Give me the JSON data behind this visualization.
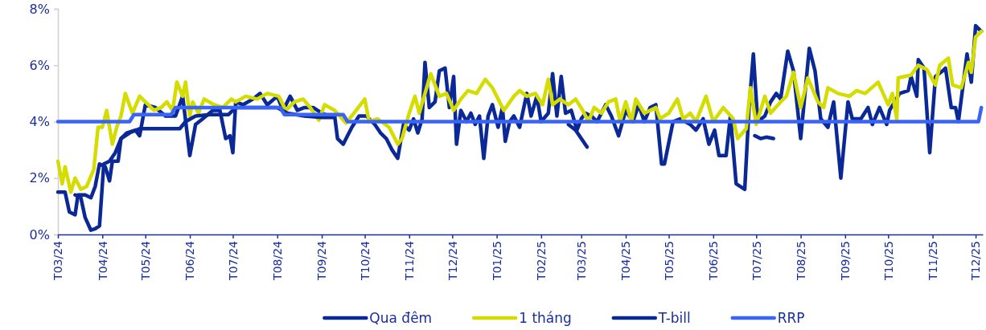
{
  "chart_data": {
    "type": "line",
    "ylim": [
      0,
      8
    ],
    "yticks": [
      {
        "value": 0,
        "label": "0%"
      },
      {
        "value": 2,
        "label": "2%"
      },
      {
        "value": 4,
        "label": "4%"
      },
      {
        "value": 6,
        "label": "6%"
      },
      {
        "value": 8,
        "label": "8%"
      }
    ],
    "xlim": [
      "2024-03-01",
      "2025-12-06"
    ],
    "xticks": [
      {
        "value": "2024-03-01",
        "label": "T03/24"
      },
      {
        "value": "2024-04-01",
        "label": "T04/24"
      },
      {
        "value": "2024-05-01",
        "label": "T05/24"
      },
      {
        "value": "2024-06-01",
        "label": "T06/24"
      },
      {
        "value": "2024-07-01",
        "label": "T07/24"
      },
      {
        "value": "2024-08-01",
        "label": "T08/24"
      },
      {
        "value": "2024-09-01",
        "label": "T09/24"
      },
      {
        "value": "2024-10-01",
        "label": "T10/24"
      },
      {
        "value": "2024-11-01",
        "label": "T11/24"
      },
      {
        "value": "2024-12-01",
        "label": "T12/24"
      },
      {
        "value": "2025-01-01",
        "label": "T01/25"
      },
      {
        "value": "2025-02-01",
        "label": "T02/25"
      },
      {
        "value": "2025-03-01",
        "label": "T03/25"
      },
      {
        "value": "2025-04-01",
        "label": "T04/25"
      },
      {
        "value": "2025-05-01",
        "label": "T05/25"
      },
      {
        "value": "2025-06-01",
        "label": "T06/25"
      },
      {
        "value": "2025-07-01",
        "label": "T07/25"
      },
      {
        "value": "2025-08-01",
        "label": "T08/25"
      },
      {
        "value": "2025-09-01",
        "label": "T09/25"
      },
      {
        "value": "2025-10-01",
        "label": "T10/25"
      },
      {
        "value": "2025-11-01",
        "label": "T11/25"
      },
      {
        "value": "2025-12-01",
        "label": "T12/25"
      }
    ],
    "grid": false,
    "legend": "bottom",
    "line_style": "solid",
    "marker": "none",
    "series": [
      {
        "name": "Qua đêm",
        "color": "#0a2896",
        "x": [
          "2024-03-01",
          "2024-03-06",
          "2024-03-09",
          "2024-03-13",
          "2024-03-15",
          "2024-03-20",
          "2024-03-24",
          "2024-03-27",
          "2024-03-30",
          "2024-04-03",
          "2024-04-06",
          "2024-04-08",
          "2024-04-12",
          "2024-04-14",
          "2024-04-18",
          "2024-04-24",
          "2024-04-27",
          "2024-05-01",
          "2024-05-08",
          "2024-05-15",
          "2024-05-22",
          "2024-05-27",
          "2024-06-01",
          "2024-06-05",
          "2024-06-10",
          "2024-06-17",
          "2024-06-22",
          "2024-06-26",
          "2024-06-29",
          "2024-07-01",
          "2024-07-03",
          "2024-07-08",
          "2024-07-15",
          "2024-07-20",
          "2024-07-25",
          "2024-08-01",
          "2024-08-05",
          "2024-08-10",
          "2024-08-15",
          "2024-08-20",
          "2024-08-26",
          "2024-09-01",
          "2024-09-06",
          "2024-09-10",
          "2024-09-12",
          "2024-09-16",
          "2024-09-22",
          "2024-09-27",
          "2024-10-02",
          "2024-10-08",
          "2024-10-12",
          "2024-10-16",
          "2024-10-20",
          "2024-10-24",
          "2024-10-28",
          "2024-11-01",
          "2024-11-04",
          "2024-11-07",
          "2024-11-10",
          "2024-11-12",
          "2024-11-15",
          "2024-11-19",
          "2024-11-22",
          "2024-11-26",
          "2024-11-29",
          "2024-12-02",
          "2024-12-04",
          "2024-12-07",
          "2024-12-11",
          "2024-12-14",
          "2024-12-17",
          "2024-12-20",
          "2024-12-23",
          "2024-12-26",
          "2024-12-29",
          "2025-01-02",
          "2025-01-05",
          "2025-01-07",
          "2025-01-10",
          "2025-01-13",
          "2025-01-17",
          "2025-01-22",
          "2025-01-25",
          "2025-01-29",
          "2025-02-01",
          "2025-02-06",
          "2025-02-09",
          "2025-02-12",
          "2025-02-15",
          "2025-02-18",
          "2025-02-22",
          "2025-02-26",
          "2025-03-01",
          "2025-03-04",
          "2025-03-08",
          "2025-03-12",
          "2025-03-18",
          "2025-03-22",
          "2025-03-27",
          "2025-04-01",
          "2025-04-06",
          "2025-04-10",
          "2025-04-14",
          "2025-04-18",
          "2025-04-22",
          "2025-04-26",
          "2025-04-28",
          "2025-05-04",
          "2025-05-09",
          "2025-05-16",
          "2025-05-20",
          "2025-05-25",
          "2025-05-29",
          "2025-06-02",
          "2025-06-05",
          "2025-06-10",
          "2025-06-13",
          "2025-06-17",
          "2025-06-23",
          "2025-06-26",
          "2025-06-29",
          "2025-07-02",
          "2025-07-07",
          "2025-07-11",
          "2025-07-15",
          "2025-07-18",
          "2025-07-23",
          "2025-07-27",
          "2025-08-01",
          "2025-08-04",
          "2025-08-07",
          "2025-08-11",
          "2025-08-15",
          "2025-08-20",
          "2025-08-24",
          "2025-08-29",
          "2025-09-03",
          "2025-09-06",
          "2025-09-12",
          "2025-09-17",
          "2025-09-20",
          "2025-09-25",
          "2025-09-30",
          "2025-10-02",
          "2025-10-09",
          "2025-10-15",
          "2025-10-17",
          "2025-10-21",
          "2025-10-22",
          "2025-10-26",
          "2025-10-30",
          "2025-11-03",
          "2025-11-08",
          "2025-11-10",
          "2025-11-14",
          "2025-11-17",
          "2025-11-19",
          "2025-11-25",
          "2025-11-28",
          "2025-12-01",
          "2025-12-05"
        ],
        "values": [
          1.5,
          1.5,
          0.8,
          0.7,
          1.4,
          1.4,
          1.3,
          1.7,
          2.5,
          2.4,
          1.9,
          2.6,
          2.6,
          3.4,
          3.6,
          3.7,
          3.5,
          4.6,
          4.5,
          4.2,
          4.2,
          4.9,
          2.8,
          3.9,
          4.1,
          4.4,
          4.4,
          3.4,
          3.5,
          2.9,
          4.7,
          4.6,
          4.8,
          5.0,
          4.6,
          4.9,
          4.4,
          4.9,
          4.4,
          4.5,
          4.5,
          4.3,
          4.2,
          4.2,
          3.4,
          3.2,
          3.8,
          4.2,
          4.2,
          3.9,
          3.6,
          3.4,
          3.0,
          2.7,
          3.9,
          3.7,
          4.1,
          3.6,
          4.1,
          6.1,
          4.5,
          4.7,
          5.8,
          5.9,
          4.5,
          5.6,
          3.2,
          4.4,
          4.0,
          4.3,
          3.9,
          4.2,
          2.7,
          4.2,
          4.6,
          3.8,
          4.5,
          3.3,
          4.0,
          4.2,
          3.8,
          5.0,
          4.2,
          4.9,
          4.0,
          4.3,
          5.7,
          4.2,
          5.6,
          4.3,
          4.4,
          3.7,
          4.1,
          4.3,
          4.2,
          4.0,
          4.6,
          4.2,
          3.5,
          4.4,
          4.0,
          4.6,
          4.0,
          4.5,
          4.6,
          2.5,
          2.5,
          4.0,
          4.1,
          3.9,
          3.7,
          4.1,
          3.2,
          3.7,
          2.8,
          2.8,
          4.2,
          1.8,
          1.6,
          4.5,
          6.4,
          4.0,
          4.2,
          4.7,
          5.0,
          4.8,
          6.5,
          5.8,
          3.4,
          5.0,
          6.6,
          5.8,
          4.1,
          3.8,
          4.7,
          2.0,
          4.7,
          4.1,
          4.1,
          4.5,
          3.9,
          4.5,
          3.9,
          4.4,
          5.0,
          5.1,
          5.6,
          4.9,
          6.2,
          5.9,
          2.9,
          5.6,
          5.8,
          5.9,
          4.5,
          4.5,
          4.0,
          6.4,
          5.4,
          7.4,
          7.2
        ]
      },
      {
        "name": "1 tháng",
        "color": "#d4dc00",
        "x": [
          "2024-03-01",
          "2024-03-04",
          "2024-03-06",
          "2024-03-10",
          "2024-03-13",
          "2024-03-17",
          "2024-03-21",
          "2024-03-26",
          "2024-03-29",
          "2024-04-01",
          "2024-04-04",
          "2024-04-08",
          "2024-04-11",
          "2024-04-14",
          "2024-04-17",
          "2024-04-22",
          "2024-04-27",
          "2024-05-03",
          "2024-05-07",
          "2024-05-12",
          "2024-05-16",
          "2024-05-20",
          "2024-05-23",
          "2024-05-27",
          "2024-05-29",
          "2024-06-01",
          "2024-06-03",
          "2024-06-07",
          "2024-06-11",
          "2024-06-18",
          "2024-06-24",
          "2024-06-30",
          "2024-07-03",
          "2024-07-10",
          "2024-07-18",
          "2024-07-25",
          "2024-08-02",
          "2024-08-07",
          "2024-08-13",
          "2024-08-19",
          "2024-08-24",
          "2024-08-30",
          "2024-09-03",
          "2024-09-10",
          "2024-09-18",
          "2024-09-25",
          "2024-10-01",
          "2024-10-04",
          "2024-10-10",
          "2024-10-18",
          "2024-10-24",
          "2024-10-27",
          "2024-11-01",
          "2024-11-05",
          "2024-11-08",
          "2024-11-12",
          "2024-11-16",
          "2024-11-22",
          "2024-11-27",
          "2024-12-02",
          "2024-12-07",
          "2024-12-12",
          "2024-12-18",
          "2024-12-24",
          "2024-12-29",
          "2025-01-06",
          "2025-01-13",
          "2025-01-17",
          "2025-01-22",
          "2025-01-28",
          "2025-02-02",
          "2025-02-06",
          "2025-02-09",
          "2025-02-14",
          "2025-02-20",
          "2025-02-25",
          "2025-03-02",
          "2025-03-06",
          "2025-03-10",
          "2025-03-15",
          "2025-03-20",
          "2025-03-25",
          "2025-03-28",
          "2025-04-01",
          "2025-04-05",
          "2025-04-08",
          "2025-04-14",
          "2025-04-22",
          "2025-04-25",
          "2025-05-01",
          "2025-05-07",
          "2025-05-11",
          "2025-05-16",
          "2025-05-20",
          "2025-05-27",
          "2025-06-01",
          "2025-06-08",
          "2025-06-15",
          "2025-06-18",
          "2025-06-24",
          "2025-06-27",
          "2025-07-01",
          "2025-07-07",
          "2025-07-11",
          "2025-07-18",
          "2025-07-22",
          "2025-07-27",
          "2025-08-01",
          "2025-08-06",
          "2025-08-13",
          "2025-08-17",
          "2025-08-20",
          "2025-08-27",
          "2025-09-04",
          "2025-09-09",
          "2025-09-15",
          "2025-09-24",
          "2025-10-01",
          "2025-10-04",
          "2025-10-07",
          "2025-10-08",
          "2025-10-17",
          "2025-10-22",
          "2025-10-28",
          "2025-11-03",
          "2025-11-06",
          "2025-11-12",
          "2025-11-15",
          "2025-11-21",
          "2025-11-26",
          "2025-11-28",
          "2025-12-01",
          "2025-12-05"
        ],
        "values": [
          2.6,
          1.8,
          2.4,
          1.5,
          2.0,
          1.6,
          1.7,
          2.3,
          3.8,
          3.8,
          4.4,
          3.2,
          3.8,
          4.2,
          5.0,
          4.3,
          4.9,
          4.6,
          4.4,
          4.5,
          4.7,
          4.4,
          5.4,
          4.9,
          5.4,
          4.2,
          4.7,
          4.3,
          4.8,
          4.6,
          4.5,
          4.8,
          4.7,
          4.9,
          4.8,
          5.0,
          4.9,
          4.4,
          4.7,
          4.8,
          4.5,
          4.05,
          4.6,
          4.4,
          3.95,
          4.4,
          4.8,
          4.0,
          4.1,
          3.8,
          3.2,
          3.4,
          4.3,
          4.9,
          4.3,
          5.0,
          5.7,
          4.9,
          5.0,
          4.4,
          4.8,
          5.1,
          5.0,
          5.5,
          5.2,
          4.4,
          4.9,
          5.1,
          4.9,
          5.0,
          4.6,
          5.5,
          4.6,
          4.8,
          4.6,
          4.8,
          4.4,
          4.0,
          4.5,
          4.3,
          4.7,
          4.8,
          4.0,
          4.7,
          4.0,
          4.8,
          4.3,
          4.5,
          4.1,
          4.3,
          4.8,
          4.1,
          4.3,
          4.0,
          4.9,
          4.0,
          4.5,
          4.1,
          3.4,
          3.75,
          5.2,
          3.9,
          4.9,
          4.3,
          4.7,
          4.9,
          5.75,
          4.5,
          5.55,
          4.7,
          4.5,
          5.2,
          5.0,
          4.9,
          5.1,
          5.0,
          5.4,
          4.6,
          5.0,
          4.1,
          5.55,
          5.65,
          6.0,
          5.85,
          5.3,
          6.0,
          6.25,
          5.3,
          5.2,
          6.1,
          5.75,
          7.0,
          7.2
        ]
      },
      {
        "name": "T-bill",
        "color": "#0a2896",
        "x": [
          "2024-03-13",
          "2024-03-17",
          "2024-03-20",
          "2024-03-24",
          "2024-03-27",
          "2024-03-30",
          "2024-04-02",
          "2024-04-06",
          "2024-04-10",
          "2024-04-14",
          "2024-04-20",
          "2024-04-27",
          "2024-05-05",
          "2024-05-15",
          "2024-05-25",
          "2024-05-29",
          "2024-06-05",
          "2024-06-15",
          "2024-06-28",
          "2024-07-03",
          "2024-07-15",
          "2024-08-01",
          "2024-08-08",
          "2024-08-20",
          "2024-09-01",
          "2024-09-10",
          "2024-09-11",
          "2025-02-20",
          "2025-02-25",
          "2025-03-01",
          "2025-03-05",
          "2025-03-06",
          "2025-06-30",
          "2025-07-04",
          "2025-07-08",
          "2025-07-13"
        ],
        "values": [
          1.4,
          1.3,
          0.6,
          0.15,
          0.2,
          0.3,
          2.5,
          2.6,
          2.9,
          3.4,
          3.6,
          3.75,
          3.75,
          3.75,
          3.75,
          4.0,
          4.2,
          4.25,
          4.25,
          4.5,
          4.5,
          4.5,
          4.3,
          4.2,
          4.15,
          4.15,
          null,
          3.9,
          3.7,
          3.4,
          3.1,
          null,
          3.5,
          3.4,
          3.45,
          3.4
        ]
      },
      {
        "name": "RRP",
        "color": "#3a64f5",
        "x": [
          "2024-03-01",
          "2024-04-20",
          "2024-04-23",
          "2024-05-19",
          "2024-05-22",
          "2024-08-03",
          "2024-08-06",
          "2024-09-16",
          "2024-09-19",
          "2025-12-03",
          "2025-12-05"
        ],
        "values": [
          4.0,
          4.0,
          4.25,
          4.25,
          4.5,
          4.5,
          4.25,
          4.25,
          4.0,
          4.0,
          4.5
        ]
      }
    ]
  }
}
